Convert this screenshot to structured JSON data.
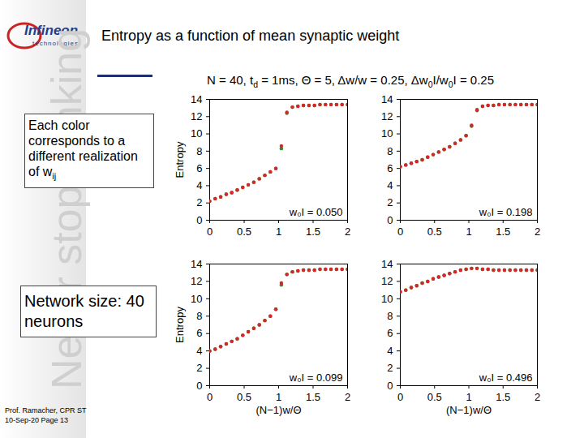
{
  "slide": {
    "logo": "Infineon",
    "logo_sub": "technologies",
    "watermark": "Never stop thinking",
    "title": "Entropy as a function of mean synaptic weight",
    "header": [
      {
        "text": "N = 40, t"
      },
      {
        "text": "d",
        "sub": true
      },
      {
        "text": " = 1ms, Θ = 5, Δw/w = 0.25, Δw"
      },
      {
        "text": "0",
        "sub": true
      },
      {
        "text": "I/w"
      },
      {
        "text": "0",
        "sub": true
      },
      {
        "text": "I = 0.25"
      }
    ],
    "note": [
      {
        "text": "Each color corresponds to a different realization of w"
      },
      {
        "text": "ij",
        "sub": true
      }
    ],
    "network": "Network size: 40 neurons",
    "footer": [
      "Prof. Ramacher, CPR ST",
      "10-Sep-20 Page 13"
    ]
  },
  "chart_data": [
    {
      "type": "scatter",
      "marker": "circle",
      "annotation": "w₀I = 0.050",
      "ylabel": "Entropy",
      "xlim": [
        0,
        2
      ],
      "xticks": [
        0,
        0.5,
        1,
        1.5,
        2
      ],
      "ylim": [
        0,
        14
      ],
      "yticks": [
        0,
        2,
        4,
        6,
        8,
        10,
        12,
        14
      ],
      "x": [
        0,
        0.08,
        0.16,
        0.24,
        0.32,
        0.4,
        0.48,
        0.56,
        0.64,
        0.72,
        0.8,
        0.88,
        0.96,
        1.04,
        1.12,
        1.2,
        1.28,
        1.36,
        1.44,
        1.52,
        1.6,
        1.68,
        1.76,
        1.84,
        1.92,
        2.0
      ],
      "series": [
        {
          "color": "#2e8b2e",
          "values": [
            2.2,
            2.5,
            2.7,
            3.0,
            3.2,
            3.5,
            3.8,
            4.1,
            4.4,
            4.8,
            5.2,
            5.6,
            6.0,
            8.3,
            12.4,
            13.1,
            13.2,
            13.3,
            13.3,
            13.3,
            13.4,
            13.4,
            13.4,
            13.4,
            13.4,
            13.4
          ]
        },
        {
          "color": "#d62728",
          "values": [
            2.2,
            2.5,
            2.7,
            3.0,
            3.2,
            3.5,
            3.8,
            4.1,
            4.4,
            4.8,
            5.2,
            5.6,
            6.0,
            8.6,
            12.5,
            13.1,
            13.2,
            13.3,
            13.3,
            13.3,
            13.4,
            13.4,
            13.4,
            13.4,
            13.4,
            13.4
          ]
        }
      ]
    },
    {
      "type": "scatter",
      "marker": "circle",
      "annotation": "w₀I = 0.198",
      "xlim": [
        0,
        2
      ],
      "xticks": [
        0,
        0.5,
        1,
        1.5,
        2
      ],
      "ylim": [
        0,
        14
      ],
      "yticks": [
        0,
        2,
        4,
        6,
        8,
        10,
        12,
        14
      ],
      "x": [
        0,
        0.08,
        0.16,
        0.24,
        0.32,
        0.4,
        0.48,
        0.56,
        0.64,
        0.72,
        0.8,
        0.88,
        0.96,
        1.04,
        1.12,
        1.2,
        1.28,
        1.36,
        1.44,
        1.52,
        1.6,
        1.68,
        1.76,
        1.84,
        1.92,
        2.0
      ],
      "series": [
        {
          "color": "#2e8b2e",
          "values": [
            6.2,
            6.4,
            6.6,
            6.8,
            7.0,
            7.3,
            7.6,
            7.9,
            8.2,
            8.5,
            8.9,
            9.3,
            9.8,
            10.9,
            12.7,
            13.2,
            13.3,
            13.3,
            13.4,
            13.4,
            13.4,
            13.4,
            13.4,
            13.4,
            13.4,
            13.4
          ]
        },
        {
          "color": "#d62728",
          "values": [
            6.2,
            6.4,
            6.6,
            6.8,
            7.0,
            7.3,
            7.6,
            7.9,
            8.2,
            8.5,
            8.9,
            9.3,
            9.8,
            11.0,
            12.8,
            13.2,
            13.3,
            13.3,
            13.4,
            13.4,
            13.4,
            13.4,
            13.4,
            13.4,
            13.4,
            13.4
          ]
        }
      ]
    },
    {
      "type": "scatter",
      "marker": "circle",
      "annotation": "w₀I = 0.099",
      "ylabel": "Entropy",
      "xlabel": "(N−1)w/Θ",
      "xlim": [
        0,
        2
      ],
      "xticks": [
        0,
        0.5,
        1,
        1.5,
        2
      ],
      "ylim": [
        0,
        14
      ],
      "yticks": [
        0,
        2,
        4,
        6,
        8,
        10,
        12,
        14
      ],
      "x": [
        0,
        0.08,
        0.16,
        0.24,
        0.32,
        0.4,
        0.48,
        0.56,
        0.64,
        0.72,
        0.8,
        0.88,
        0.96,
        1.04,
        1.12,
        1.2,
        1.28,
        1.36,
        1.44,
        1.52,
        1.6,
        1.68,
        1.76,
        1.84,
        1.92,
        2.0
      ],
      "series": [
        {
          "color": "#2e8b2e",
          "values": [
            4.0,
            4.2,
            4.5,
            4.8,
            5.1,
            5.4,
            5.8,
            6.2,
            6.6,
            7.0,
            7.5,
            8.0,
            8.8,
            11.6,
            12.8,
            13.1,
            13.2,
            13.3,
            13.3,
            13.3,
            13.4,
            13.4,
            13.4,
            13.4,
            13.4,
            13.4
          ]
        },
        {
          "color": "#d62728",
          "values": [
            4.0,
            4.2,
            4.5,
            4.8,
            5.1,
            5.4,
            5.8,
            6.2,
            6.6,
            7.0,
            7.5,
            8.0,
            8.8,
            11.8,
            12.8,
            13.1,
            13.2,
            13.3,
            13.3,
            13.3,
            13.4,
            13.4,
            13.4,
            13.4,
            13.4,
            13.4
          ]
        }
      ]
    },
    {
      "type": "scatter",
      "marker": "circle",
      "annotation": "w₀I = 0.496",
      "xlabel": "(N−1)w/Θ",
      "xlim": [
        0,
        2
      ],
      "xticks": [
        0,
        0.5,
        1,
        1.5,
        2
      ],
      "ylim": [
        0,
        14
      ],
      "yticks": [
        0,
        2,
        4,
        6,
        8,
        10,
        12,
        14
      ],
      "x": [
        0,
        0.08,
        0.16,
        0.24,
        0.32,
        0.4,
        0.48,
        0.56,
        0.64,
        0.72,
        0.8,
        0.88,
        0.96,
        1.04,
        1.12,
        1.2,
        1.28,
        1.36,
        1.44,
        1.52,
        1.6,
        1.68,
        1.76,
        1.84,
        1.92,
        2.0
      ],
      "series": [
        {
          "color": "#2e8b2e",
          "values": [
            10.8,
            11.0,
            11.3,
            11.5,
            11.8,
            12.0,
            12.3,
            12.5,
            12.7,
            12.9,
            13.1,
            13.3,
            13.4,
            13.5,
            13.5,
            13.4,
            13.4,
            13.3,
            13.3,
            13.3,
            13.3,
            13.3,
            13.3,
            13.3,
            13.3,
            13.3
          ]
        },
        {
          "color": "#d62728",
          "values": [
            10.8,
            11.0,
            11.3,
            11.5,
            11.8,
            12.0,
            12.3,
            12.5,
            12.7,
            12.9,
            13.1,
            13.3,
            13.4,
            13.5,
            13.5,
            13.4,
            13.4,
            13.3,
            13.3,
            13.3,
            13.3,
            13.3,
            13.3,
            13.3,
            13.3,
            13.3
          ]
        }
      ]
    }
  ]
}
